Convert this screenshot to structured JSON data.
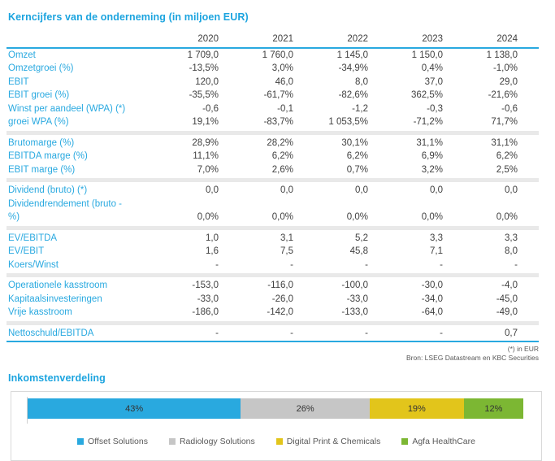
{
  "table": {
    "title": "Kerncijfers van de onderneming (in miljoen EUR)",
    "year_columns": [
      "2020",
      "2021",
      "2022",
      "2023",
      "2024"
    ],
    "groups": [
      {
        "rows": [
          {
            "label": "Omzet",
            "values": [
              "1 709,0",
              "1 760,0",
              "1 145,0",
              "1 150,0",
              "1 138,0"
            ]
          },
          {
            "label": "Omzetgroei (%)",
            "values": [
              "-13,5%",
              "3,0%",
              "-34,9%",
              "0,4%",
              "-1,0%"
            ]
          },
          {
            "label": "EBIT",
            "values": [
              "120,0",
              "46,0",
              "8,0",
              "37,0",
              "29,0"
            ]
          },
          {
            "label": "EBIT groei (%)",
            "values": [
              "-35,5%",
              "-61,7%",
              "-82,6%",
              "362,5%",
              "-21,6%"
            ]
          },
          {
            "label": "Winst per aandeel (WPA) (*)",
            "values": [
              "-0,6",
              "-0,1",
              "-1,2",
              "-0,3",
              "-0,6"
            ]
          },
          {
            "label": "groei WPA (%)",
            "values": [
              "19,1%",
              "-83,7%",
              "1 053,5%",
              "-71,2%",
              "71,7%"
            ]
          }
        ]
      },
      {
        "rows": [
          {
            "label": "Brutomarge (%)",
            "values": [
              "28,9%",
              "28,2%",
              "30,1%",
              "31,1%",
              "31,1%"
            ]
          },
          {
            "label": "EBITDA marge (%)",
            "values": [
              "11,1%",
              "6,2%",
              "6,2%",
              "6,9%",
              "6,2%"
            ]
          },
          {
            "label": "EBIT marge (%)",
            "values": [
              "7,0%",
              "2,6%",
              "0,7%",
              "3,2%",
              "2,5%"
            ]
          }
        ]
      },
      {
        "rows": [
          {
            "label": "Dividend (bruto) (*)",
            "values": [
              "0,0",
              "0,0",
              "0,0",
              "0,0",
              "0,0"
            ]
          },
          {
            "label": "Dividendrendement (bruto - %)",
            "values": [
              "0,0%",
              "0,0%",
              "0,0%",
              "0,0%",
              "0,0%"
            ]
          }
        ]
      },
      {
        "rows": [
          {
            "label": "EV/EBITDA",
            "values": [
              "1,0",
              "3,1",
              "5,2",
              "3,3",
              "3,3"
            ]
          },
          {
            "label": "EV/EBIT",
            "values": [
              "1,6",
              "7,5",
              "45,8",
              "7,1",
              "8,0"
            ]
          },
          {
            "label": "Koers/Winst",
            "values": [
              "-",
              "-",
              "-",
              "-",
              "-"
            ]
          }
        ]
      },
      {
        "rows": [
          {
            "label": "Operationele kasstroom",
            "values": [
              "-153,0",
              "-116,0",
              "-100,0",
              "-30,0",
              "-4,0"
            ]
          },
          {
            "label": "Kapitaalsinvesteringen",
            "values": [
              "-33,0",
              "-26,0",
              "-33,0",
              "-34,0",
              "-45,0"
            ]
          },
          {
            "label": "Vrije kasstroom",
            "values": [
              "-186,0",
              "-142,0",
              "-133,0",
              "-64,0",
              "-49,0"
            ]
          }
        ]
      },
      {
        "rows": [
          {
            "label": "Nettoschuld/EBITDA",
            "values": [
              "-",
              "-",
              "-",
              "-",
              "0,7"
            ]
          }
        ]
      }
    ],
    "footnotes": [
      "(*) in EUR",
      "Bron: LSEG Datastream en KBC Securities"
    ]
  },
  "chart_data": {
    "type": "bar",
    "stacked": true,
    "orientation": "horizontal",
    "title": "Inkomstenverdeling",
    "unit": "%",
    "legend_position": "bottom",
    "xlim": [
      0,
      100
    ],
    "series": [
      {
        "name": "Offset Solutions",
        "value": 43,
        "label": "43%",
        "color": "#29A9DF"
      },
      {
        "name": "Radiology Solutions",
        "value": 26,
        "label": "26%",
        "color": "#C6C6C6"
      },
      {
        "name": "Digital Print & Chemicals",
        "value": 19,
        "label": "19%",
        "color": "#E2C51B"
      },
      {
        "name": "Agfa HealthCare",
        "value": 12,
        "label": "12%",
        "color": "#7CB733"
      }
    ]
  },
  "colors": {
    "accent_blue": "#1CA4DF",
    "table_label_blue": "#29A9E0",
    "value_text": "#404040",
    "separator_gray": "#E9E9E9",
    "footnote_gray": "#595959",
    "chart_border": "#D9D9D9"
  }
}
